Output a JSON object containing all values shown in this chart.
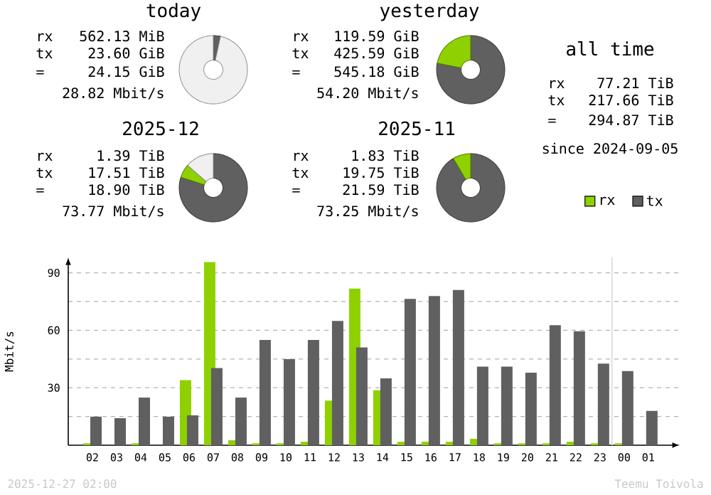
{
  "chart_data": [
    {
      "type": "donut",
      "title": "today",
      "categories": [
        null,
        null,
        null
      ],
      "values": [
        3.4,
        null,
        96.6
      ],
      "colors": [
        "#606060",
        "#8fd100",
        "#f0f0f0"
      ],
      "annotations": [
        "rx",
        "562.13 MiB",
        "tx",
        "23.60 GiB",
        "=",
        "24.15 GiB",
        "28.82 Mbit/s"
      ]
    },
    {
      "type": "donut",
      "title": "yesterday",
      "categories": [
        null,
        null
      ],
      "values": [
        78.1,
        21.9
      ],
      "colors": [
        "#606060",
        "#8fd100"
      ],
      "annotations": [
        "rx",
        "119.59 GiB",
        "tx",
        "425.59 GiB",
        "=",
        "545.18 GiB",
        "54.20 Mbit/s"
      ]
    },
    {
      "type": "other",
      "title": "all time",
      "annotations": [
        "rx",
        "77.21 TiB",
        "tx",
        "217.66 TiB",
        "=",
        "294.87 TiB",
        "since 2024-09-05"
      ]
    },
    {
      "type": "donut",
      "title": "2025-12",
      "categories": [
        null,
        null,
        null
      ],
      "values": [
        80,
        6.4,
        13.6
      ],
      "colors": [
        "#606060",
        "#8fd100",
        "#f0f0f0"
      ],
      "annotations": [
        "rx",
        "1.39 TiB",
        "tx",
        "17.51 TiB",
        "=",
        "18.90 TiB",
        "73.77 Mbit/s"
      ]
    },
    {
      "type": "donut",
      "title": "2025-11",
      "categories": [
        null,
        null
      ],
      "values": [
        91.5,
        8.5
      ],
      "colors": [
        "#606060",
        "#8fd100"
      ],
      "annotations": [
        "rx",
        "1.83 TiB",
        "tx",
        "19.75 TiB",
        "=",
        "21.59 TiB",
        "73.25 Mbit/s"
      ]
    },
    {
      "type": "bar",
      "ylabel": "Mbit/s",
      "categories": [
        "02",
        "03",
        "04",
        "05",
        "06",
        "07",
        "08",
        "09",
        "10",
        "11",
        "12",
        "13",
        "14",
        "15",
        "16",
        "17",
        "18",
        "19",
        "20",
        "21",
        "22",
        "23",
        "00",
        "01"
      ],
      "series": [
        {
          "name": "rx",
          "color": "#8fd100",
          "values": [
            1,
            0,
            1,
            0,
            34,
            95.6,
            2.6,
            1,
            1,
            1.8,
            23.3,
            81.8,
            28.7,
            1.8,
            1.8,
            1.8,
            3.3,
            1,
            1,
            1,
            1.8,
            1,
            1,
            0
          ]
        },
        {
          "name": "tx",
          "color": "#606060",
          "values": [
            14.9,
            14.1,
            24.9,
            14.9,
            15.6,
            40.3,
            24.9,
            54.9,
            44.9,
            54.9,
            64.9,
            51,
            34.9,
            76.4,
            77.9,
            81,
            41,
            41,
            37.9,
            62.6,
            59.5,
            42.6,
            38.7,
            17.9
          ]
        }
      ],
      "ylim": [
        0,
        98
      ],
      "yticks": [
        {
          "value": 15,
          "label": null
        },
        30,
        {
          "value": 45,
          "label": null
        },
        60,
        {
          "value": 75,
          "label": null
        },
        90
      ],
      "grid": "y",
      "legend": "top right",
      "ref_lines": [
        {
          "axis": "x",
          "value": "00",
          "color": "#e0e0e0"
        }
      ],
      "annotations": [
        "2025-12-27 02:00",
        "Teemu Toivola"
      ]
    }
  ]
}
